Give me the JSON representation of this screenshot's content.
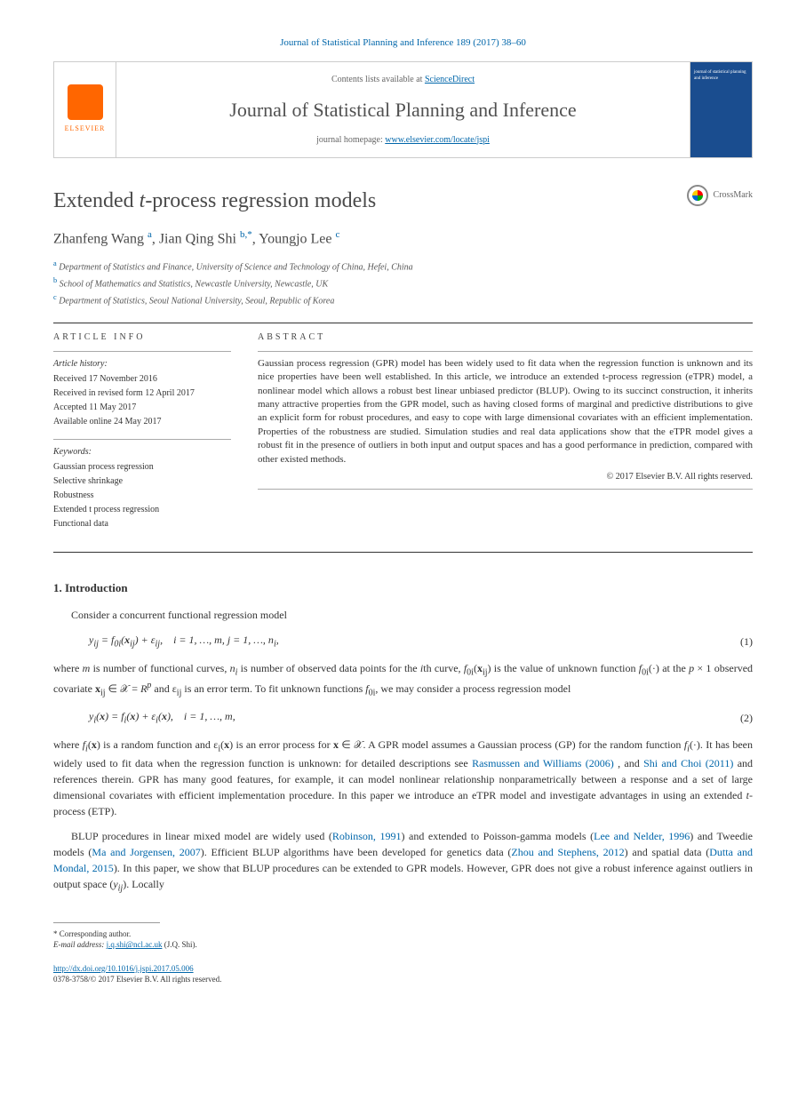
{
  "journal_header": "Journal of Statistical Planning and Inference 189 (2017) 38–60",
  "header": {
    "contents_prefix": "Contents lists available at ",
    "contents_link": "ScienceDirect",
    "journal_name": "Journal of Statistical Planning and Inference",
    "homepage_prefix": "journal homepage: ",
    "homepage_link": "www.elsevier.com/locate/jspi",
    "elsevier_label": "ELSEVIER",
    "cover_text": "journal of statistical planning and inference"
  },
  "title": "Extended t-process regression models",
  "crossmark_label": "CrossMark",
  "authors_html": "Zhanfeng Wang <sup>a</sup>, Jian Qing Shi <sup>b,*</sup>, Youngjo Lee <sup>c</sup>",
  "affiliations": [
    {
      "sup": "a",
      "text": "Department of Statistics and Finance, University of Science and Technology of China, Hefei, China"
    },
    {
      "sup": "b",
      "text": "School of Mathematics and Statistics, Newcastle University, Newcastle, UK"
    },
    {
      "sup": "c",
      "text": "Department of Statistics, Seoul National University, Seoul, Republic of Korea"
    }
  ],
  "article_info": {
    "heading": "ARTICLE INFO",
    "history_label": "Article history:",
    "history": [
      "Received 17 November 2016",
      "Received in revised form 12 April 2017",
      "Accepted 11 May 2017",
      "Available online 24 May 2017"
    ],
    "keywords_label": "Keywords:",
    "keywords": [
      "Gaussian process regression",
      "Selective shrinkage",
      "Robustness",
      "Extended t process regression",
      "Functional data"
    ]
  },
  "abstract": {
    "heading": "ABSTRACT",
    "text": "Gaussian process regression (GPR) model has been widely used to fit data when the regression function is unknown and its nice properties have been well established. In this article, we introduce an extended t-process regression (eTPR) model, a nonlinear model which allows a robust best linear unbiased predictor (BLUP). Owing to its succinct construction, it inherits many attractive properties from the GPR model, such as having closed forms of marginal and predictive distributions to give an explicit form for robust procedures, and easy to cope with large dimensional covariates with an efficient implementation. Properties of the robustness are studied. Simulation studies and real data applications show that the eTPR model gives a robust fit in the presence of outliers in both input and output spaces and has a good performance in prediction, compared with other existed methods.",
    "copyright": "© 2017 Elsevier B.V. All rights reserved."
  },
  "intro": {
    "heading": "1. Introduction",
    "p1": "Consider a concurrent functional regression model",
    "eq1": "y_{ij} = f_{0i}(x_{ij}) + ε_{ij},    i = 1, …, m, j = 1, …, n_i,",
    "eq1_num": "(1)",
    "p2_html": "where <i>m</i> is number of functional curves, <i>n<sub>i</sub></i> is number of observed data points for the <i>i</i>th curve, <i>f</i><sub>0i</sub>(<b>x</b><sub>ij</sub>) is the value of unknown function <i>f</i><sub>0i</sub>(·) at the <i>p</i> × 1 observed covariate <b>x</b><sub>ij</sub> ∈ 𝒳 = <i>R<sup>p</sup></i> and ε<sub>ij</sub> is an error term. To fit unknown functions <i>f</i><sub>0i</sub>, we may consider a process regression model",
    "eq2": "y_i(x) = f_i(x) + ε_i(x),    i = 1, …, m,",
    "eq2_num": "(2)",
    "p3_html": "where <i>f<sub>i</sub></i>(<b>x</b>) is a random function and ε<sub>i</sub>(<b>x</b>) is an error process for <b>x</b> ∈ 𝒳. A GPR model assumes a Gaussian process (GP) for the random function <i>f<sub>i</sub></i>(·). It has been widely used to fit data when the regression function is unknown: for detailed descriptions see <a class='ref'>Rasmussen and Williams (2006)</a> , and <a class='ref'>Shi and Choi (2011)</a> and references therein. GPR has many good features, for example, it can model nonlinear relationship nonparametrically between a response and a set of large dimensional covariates with efficient implementation procedure. In this paper we introduce an eTPR model and investigate advantages in using an extended <i>t</i>-process (ETP).",
    "p4_html": "BLUP procedures in linear mixed model are widely used (<a class='ref'>Robinson, 1991</a>) and extended to Poisson-gamma models (<a class='ref'>Lee and Nelder, 1996</a>) and Tweedie models (<a class='ref'>Ma and Jorgensen, 2007</a>). Efficient BLUP algorithms have been developed for genetics data (<a class='ref'>Zhou and Stephens, 2012</a>) and spatial data (<a class='ref'>Dutta and Mondal, 2015</a>). In this paper, we show that BLUP procedures can be extended to GPR models. However, GPR does not give a robust inference against outliers in output space (<i>y<sub>ij</sub></i>). Locally"
  },
  "footnote": {
    "corresponding": "* Corresponding author.",
    "email_label": "E-mail address:",
    "email": "j.q.shi@ncl.ac.uk",
    "email_person": "(J.Q. Shi)."
  },
  "doi": {
    "url": "http://dx.doi.org/10.1016/j.jspi.2017.05.006",
    "issn_line": "0378-3758/© 2017 Elsevier B.V. All rights reserved."
  }
}
